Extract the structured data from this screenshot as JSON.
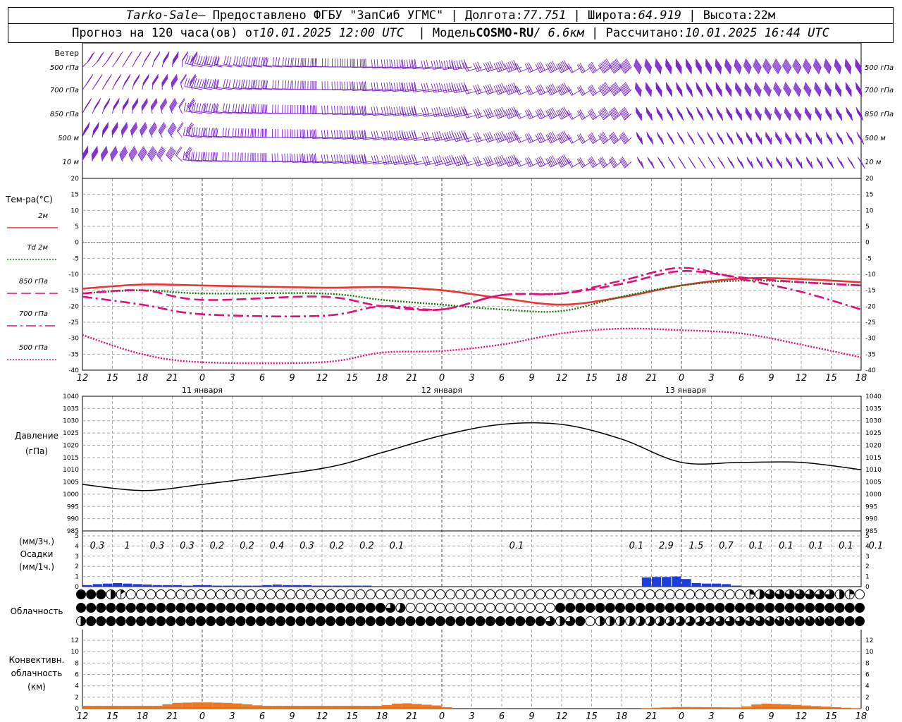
{
  "header": {
    "station": "Tarko-Sale",
    "provider": "– Предоставлено ФГБУ \"ЗапСиб УГМС\"",
    "lon_label": "Долгота:",
    "lon": "77.751",
    "lat_label": "Широта:",
    "lat": "64.919",
    "alt_label": "Высота:",
    "alt": "22м",
    "fc_label": "Прогноз на 120 часа(ов) от",
    "fc_time": "10.01.2025 12:00 UTC",
    "model_label": "Модель",
    "model": "COSMO-RU",
    "model_res": "/ 6.6км",
    "calc_label": "Рассчитано:",
    "calc_time": "10.01.2025 16:44 UTC"
  },
  "wind": {
    "title": "Ветер",
    "levels": [
      "500 гПа",
      "700 гПа",
      "850 гПа",
      "500 м",
      "10  м"
    ],
    "color": "#7722cc"
  },
  "temp": {
    "title": "Тем-ра(°C)",
    "legend": [
      {
        "label": "2м",
        "color": "#ee3333",
        "style": "solid"
      },
      {
        "label": "Td  2м",
        "color": "#117711",
        "style": "dotted"
      },
      {
        "label": "850 гПа",
        "color": "#dd1177",
        "style": "dash"
      },
      {
        "label": "700 гПа",
        "color": "#dd1177",
        "style": "dashdot"
      },
      {
        "label": "500 гПа",
        "color": "#dd1177",
        "style": "dotted"
      }
    ],
    "yticks": [
      20,
      15,
      10,
      5,
      0,
      -5,
      -10,
      -15,
      -20,
      -25,
      -30,
      -35,
      -40
    ]
  },
  "time_axis": {
    "hours": [
      "12",
      "15",
      "18",
      "21",
      "0",
      "3",
      "6",
      "9",
      "12",
      "15",
      "18",
      "21",
      "0",
      "3",
      "6",
      "9",
      "12",
      "15",
      "18",
      "21",
      "0",
      "3",
      "6",
      "9",
      "12",
      "15",
      "18"
    ],
    "days": [
      "11 января",
      "12 января",
      "13 января"
    ]
  },
  "pressure": {
    "title": "Давление",
    "unit": "(гПа)",
    "yticks": [
      1040,
      1035,
      1030,
      1025,
      1020,
      1015,
      1010,
      1005,
      1000,
      995,
      990,
      985
    ]
  },
  "precip": {
    "unit3h": "(мм/3ч.)",
    "title": "Осадки",
    "unit1h": "(мм/1ч.)",
    "yticks": [
      5,
      4,
      3,
      2,
      1,
      0
    ],
    "labels": [
      {
        "h": 0,
        "v": "0.3"
      },
      {
        "h": 3,
        "v": "1"
      },
      {
        "h": 6,
        "v": "0.3"
      },
      {
        "h": 9,
        "v": "0.3"
      },
      {
        "h": 12,
        "v": "0.2"
      },
      {
        "h": 15,
        "v": "0.2"
      },
      {
        "h": 18,
        "v": "0.4"
      },
      {
        "h": 21,
        "v": "0.3"
      },
      {
        "h": 24,
        "v": "0.2"
      },
      {
        "h": 27,
        "v": "0.2"
      },
      {
        "h": 30,
        "v": "0.1"
      },
      {
        "h": 42,
        "v": "0.1"
      },
      {
        "h": 54,
        "v": "0.1"
      },
      {
        "h": 57,
        "v": "2.9"
      },
      {
        "h": 60,
        "v": "1.5"
      },
      {
        "h": 63,
        "v": "0.7"
      },
      {
        "h": 66,
        "v": "0.1"
      },
      {
        "h": 69,
        "v": "0.1"
      },
      {
        "h": 72,
        "v": "0.1"
      },
      {
        "h": 75,
        "v": "0.1"
      },
      {
        "h": 78,
        "v": "0.1"
      }
    ],
    "color": "#1a3ee0"
  },
  "cloud": {
    "title": "Облачность"
  },
  "conv": {
    "title1": "Конвективн.",
    "title2": "облачность",
    "unit": "(км)",
    "yticks": [
      12,
      10,
      8,
      6,
      4,
      2,
      0
    ],
    "color": "#ee7722"
  },
  "chart_data": [
    {
      "type": "line",
      "title": "Тем-ра(°C)",
      "x_unit": "hours from 10.01.2025 12:00 UTC",
      "ylim": [
        -40,
        20
      ],
      "series": [
        {
          "name": "2м",
          "x": [
            0,
            6,
            12,
            24,
            30,
            36,
            42,
            48,
            54,
            60,
            66,
            72,
            78
          ],
          "values": [
            -14.5,
            -13.2,
            -13.5,
            -14.2,
            -14,
            -15,
            -17.5,
            -19.5,
            -17.2,
            -13.5,
            -11.3,
            -11.5,
            -12.5
          ]
        },
        {
          "name": "Td  2м",
          "x": [
            0,
            6,
            12,
            24,
            30,
            36,
            42,
            48,
            54,
            60,
            66,
            72,
            78
          ],
          "values": [
            -16,
            -15,
            -16,
            -16,
            -18,
            -19.5,
            -21,
            -21.5,
            -17,
            -13.5,
            -12,
            -12.5,
            -13.5
          ]
        },
        {
          "name": "850 гПа",
          "x": [
            0,
            6,
            12,
            24,
            30,
            36,
            42,
            48,
            54,
            60,
            66,
            72,
            78
          ],
          "values": [
            -16,
            -15,
            -18,
            -17,
            -20,
            -21,
            -16.5,
            -16,
            -13,
            -9,
            -11,
            -12.5,
            -13.5
          ]
        },
        {
          "name": "700 гПа",
          "x": [
            0,
            6,
            12,
            24,
            30,
            36,
            42,
            48,
            54,
            60,
            66,
            72,
            78
          ],
          "values": [
            -17,
            -19.5,
            -22.5,
            -23,
            -20,
            -21,
            -16.5,
            -16,
            -12,
            -8,
            -11.5,
            -15.5,
            -21
          ]
        },
        {
          "name": "500 гПа",
          "x": [
            0,
            6,
            12,
            24,
            30,
            36,
            42,
            48,
            54,
            60,
            66,
            72,
            78
          ],
          "values": [
            -29,
            -35,
            -37.5,
            -37.5,
            -34.5,
            -34,
            -32,
            -28.5,
            -27,
            -27.5,
            -28.5,
            -32,
            -36
          ]
        }
      ]
    },
    {
      "type": "line",
      "title": "Давление",
      "x_unit": "hours from 10.01.2025 12:00 UTC",
      "ylim": [
        985,
        1040
      ],
      "series": [
        {
          "name": "",
          "x": [
            0,
            6,
            12,
            24,
            30,
            36,
            42,
            48,
            54,
            60,
            66,
            72,
            78
          ],
          "values": [
            1004,
            1001.5,
            1004,
            1010.5,
            1017,
            1024,
            1028.5,
            1028.5,
            1022.5,
            1013,
            1013,
            1013,
            1010
          ]
        }
      ]
    },
    {
      "type": "bar",
      "title": "Осадки",
      "ylim": [
        0,
        5
      ],
      "x_unit": "hours from 10.01.2025 12:00 UTC",
      "x": [
        1,
        2,
        3,
        4,
        5,
        6,
        7,
        8,
        9,
        10,
        11,
        12,
        13,
        14,
        15,
        16,
        17,
        18,
        19,
        20,
        21,
        22,
        23,
        24,
        25,
        26,
        27,
        28,
        29,
        30,
        33,
        36,
        39,
        42,
        45,
        57,
        58,
        59,
        60,
        61,
        62,
        63,
        64,
        65,
        66,
        69,
        72,
        75,
        78
      ],
      "values": [
        0.15,
        0.25,
        0.3,
        0.35,
        0.3,
        0.25,
        0.2,
        0.15,
        0.15,
        0.15,
        0.1,
        0.15,
        0.15,
        0.1,
        0.1,
        0.1,
        0.1,
        0.1,
        0.15,
        0.2,
        0.15,
        0.15,
        0.15,
        0.1,
        0.1,
        0.1,
        0.1,
        0.1,
        0.1,
        0.05,
        0.05,
        0.05,
        0.05,
        0.05,
        0.05,
        0.9,
        0.95,
        0.95,
        1.0,
        0.75,
        0.35,
        0.3,
        0.3,
        0.25,
        0.1,
        0.05,
        0.05,
        0.05,
        0.05
      ]
    },
    {
      "type": "area",
      "title": "Облачность",
      "series": [
        {
          "name": "upper",
          "x": [
            0,
            1,
            2,
            3,
            4,
            6,
            66,
            69,
            72,
            75,
            78
          ],
          "values": [
            1,
            1,
            1,
            0.5,
            0.15,
            0,
            0,
            0.8,
            0.8,
            0.75,
            0
          ]
        },
        {
          "name": "middle",
          "x": [
            0,
            30,
            31,
            32,
            33,
            47,
            48,
            78
          ],
          "values": [
            1,
            1,
            0.75,
            0.6,
            0,
            0,
            1,
            1
          ]
        },
        {
          "name": "lower",
          "x": [
            0,
            1,
            2,
            3,
            46,
            47,
            48,
            50,
            51,
            52,
            78
          ],
          "values": [
            0.5,
            1,
            1,
            1,
            1,
            0.75,
            0.5,
            1,
            0,
            0.5,
            1
          ]
        }
      ]
    },
    {
      "type": "area",
      "title": "Конвективн. облачность",
      "ylim": [
        0,
        13
      ],
      "x_unit": "hours from 10.01.2025 12:00 UTC",
      "x": [
        0,
        8,
        9,
        12,
        15,
        18,
        21,
        30,
        32,
        36,
        37,
        45,
        55,
        60,
        66,
        68,
        70,
        78
      ],
      "values": [
        0.5,
        0.5,
        1.0,
        1.1,
        1.0,
        0.5,
        0.5,
        0.5,
        1.0,
        0.5,
        0,
        0,
        0,
        0.3,
        0.2,
        0.9,
        0.8,
        0
      ]
    }
  ]
}
